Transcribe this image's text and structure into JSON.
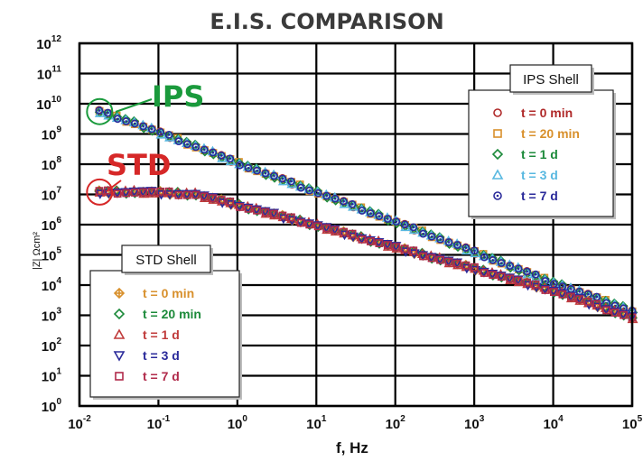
{
  "chart_data": {
    "type": "scatter",
    "title": "E.I.S. COMPARISON",
    "xlabel": "f, Hz",
    "ylabel": "|Z| Ωcm²",
    "x_scale": "log",
    "y_scale": "log",
    "xlim": [
      0.01,
      100000
    ],
    "ylim": [
      1,
      1000000000000
    ],
    "x_ticks": [
      {
        "base": "10",
        "exp": "-2"
      },
      {
        "base": "10",
        "exp": "-1"
      },
      {
        "base": "10",
        "exp": "0"
      },
      {
        "base": "10",
        "exp": "1"
      },
      {
        "base": "10",
        "exp": "2"
      },
      {
        "base": "10",
        "exp": "3"
      },
      {
        "base": "10",
        "exp": "4"
      },
      {
        "base": "10",
        "exp": "5"
      }
    ],
    "y_ticks": [
      {
        "base": "10",
        "exp": "0"
      },
      {
        "base": "10",
        "exp": "1"
      },
      {
        "base": "10",
        "exp": "2"
      },
      {
        "base": "10",
        "exp": "3"
      },
      {
        "base": "10",
        "exp": "4"
      },
      {
        "base": "10",
        "exp": "5"
      },
      {
        "base": "10",
        "exp": "6"
      },
      {
        "base": "10",
        "exp": "7"
      },
      {
        "base": "10",
        "exp": "8"
      },
      {
        "base": "10",
        "exp": "9"
      },
      {
        "base": "10",
        "exp": "10"
      },
      {
        "base": "10",
        "exp": "11"
      },
      {
        "base": "10",
        "exp": "12"
      }
    ],
    "grid": true,
    "groups": [
      {
        "legend_title": "IPS Shell",
        "legend_position": "top-right",
        "annotation": "IPS",
        "annotation_color": "#1a9a3c",
        "annotated_point": {
          "x": 0.018,
          "y": 5500000000
        },
        "curve_x": [
          0.018,
          0.05,
          0.1,
          0.5,
          1,
          10,
          100,
          1000,
          10000,
          100000
        ],
        "curve_y": [
          5500000000,
          2300000000,
          1150000000,
          230000000,
          110000000,
          12000000,
          1250000,
          125000,
          12000,
          1400
        ],
        "series": [
          {
            "name": "t = 0 min",
            "marker": "circle",
            "color": "#b02a2a"
          },
          {
            "name": "t = 20 min",
            "marker": "square",
            "color": "#d8902c"
          },
          {
            "name": "t = 1 d",
            "marker": "diamond",
            "color": "#1c8a3a"
          },
          {
            "name": "t = 3 d",
            "marker": "triangle-up",
            "color": "#58b8e0"
          },
          {
            "name": "t = 7 d",
            "marker": "circle-dot",
            "color": "#2a2a9a"
          }
        ]
      },
      {
        "legend_title": "STD Shell",
        "legend_position": "bottom-left",
        "annotation": "STD",
        "annotation_color": "#d62828",
        "annotated_point": {
          "x": 0.018,
          "y": 12000000
        },
        "curve_x": [
          0.018,
          0.05,
          0.1,
          0.3,
          1,
          10,
          100,
          1000,
          10000,
          100000
        ],
        "curve_y": [
          12000000,
          12000000,
          11500000,
          10000000,
          4500000,
          950000,
          180000,
          35000,
          6500,
          850
        ],
        "series": [
          {
            "name": "t = 0 min",
            "marker": "diamond-plus",
            "color": "#d8902c"
          },
          {
            "name": "t = 20 min",
            "marker": "diamond",
            "color": "#1c8a3a"
          },
          {
            "name": "t = 1 d",
            "marker": "triangle-up",
            "color": "#c03a3a"
          },
          {
            "name": "t = 3 d",
            "marker": "triangle-down",
            "color": "#2a2a9a"
          },
          {
            "name": "t = 7 d",
            "marker": "square",
            "color": "#b02a4a"
          }
        ]
      }
    ]
  }
}
